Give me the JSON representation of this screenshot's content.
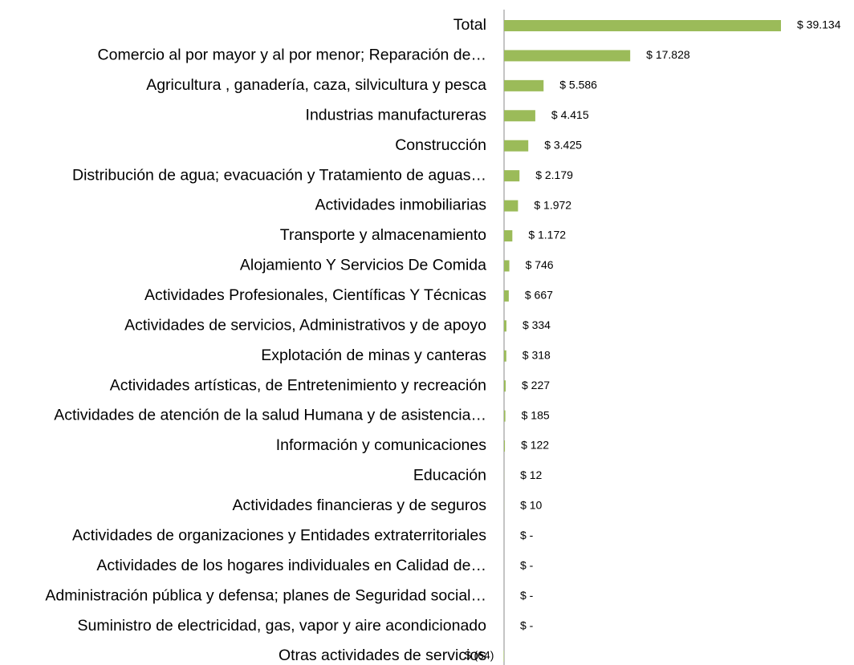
{
  "chart_data": {
    "type": "bar",
    "orientation": "horizontal",
    "color": "#9bbb59",
    "categories": [
      "Total",
      "Comercio al por mayor y al por menor; Reparación de…",
      "Agricultura , ganadería, caza,  silvicultura y pesca",
      "Industrias  manufactureras",
      "Construcción",
      "Distribución de agua; evacuación y Tratamiento de aguas…",
      "Actividades inmobiliarias",
      "Transporte y almacenamiento",
      "Alojamiento Y Servicios De Comida",
      "Actividades Profesionales, Científicas Y Técnicas",
      "Actividades de servicios, Administrativos y de apoyo",
      "Explotación de minas y canteras",
      "Actividades artísticas, de Entretenimiento y recreación",
      "Actividades de atención de la salud Humana y de asistencia…",
      "Información y comunicaciones",
      "Educación",
      "Actividades financieras y de seguros",
      "Actividades de organizaciones y Entidades extraterritoriales",
      "Actividades de los hogares individuales en Calidad de…",
      "Administración pública y defensa; planes de Seguridad social…",
      "Suministro de electricidad, gas, vapor y aire acondicionado",
      "Otras actividades de servicios"
    ],
    "values": [
      39134,
      17828,
      5586,
      4415,
      3425,
      2179,
      1972,
      1172,
      746,
      667,
      334,
      318,
      227,
      185,
      122,
      12,
      10,
      0,
      0,
      0,
      0,
      -64
    ],
    "value_labels": [
      "$ 39.134",
      "$ 17.828",
      "$ 5.586",
      "$ 4.415",
      "$ 3.425",
      "$ 2.179",
      "$ 1.972",
      "$ 1.172",
      "$ 746",
      "$ 667",
      "$ 334",
      "$ 318",
      "$ 227",
      "$ 185",
      "$ 122",
      "$ 12",
      "$ 10",
      "$ -",
      "$ -",
      "$ -",
      "$ -",
      "$ (64)"
    ]
  }
}
